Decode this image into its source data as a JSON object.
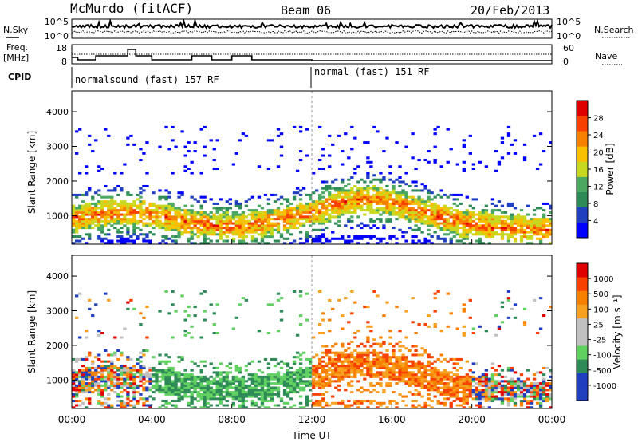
{
  "header": {
    "station": "McMurdo (fitACF)",
    "beam": "Beam 06",
    "date": "20/Feb/2013"
  },
  "top_panels": {
    "nsky_label": "N.Sky",
    "nsearch_label": "N.Search",
    "noise_ticks": [
      "10^5",
      "10^0"
    ],
    "freq_label_1": "Freq.",
    "freq_label_2": "[MHz]",
    "freq_ticks": [
      "18",
      "8"
    ],
    "nave_label": "Nave",
    "nave_ticks": [
      "60",
      "0"
    ],
    "cpid_label": "CPID",
    "cpid_entries": [
      {
        "text": "normalsound (fast) 157 RF",
        "start_hour": 0
      },
      {
        "text": "normal (fast) 151 RF",
        "start_hour": 12
      }
    ]
  },
  "colors": {
    "power_scale": [
      "#0000ff",
      "#1f3fc0",
      "#2e8b57",
      "#4aa860",
      "#c8d820",
      "#f8c000",
      "#f88000",
      "#f84000",
      "#e00000"
    ],
    "velocity_scale": [
      "#e00000",
      "#f84000",
      "#f88000",
      "#f8a020",
      "#c0c0c0",
      "#c0c0c0",
      "#60d060",
      "#2e8b57",
      "#1f3fc0",
      "#2040c0"
    ]
  },
  "chart_data": [
    {
      "type": "heatmap",
      "name": "Power",
      "xlabel": "",
      "ylabel": "Slant Range [km]",
      "xlim": [
        0,
        24
      ],
      "ylim": [
        180,
        4600
      ],
      "yticks": [
        "1000",
        "2000",
        "3000",
        "4000"
      ],
      "ytick_values": [
        1000,
        2000,
        3000,
        4000
      ],
      "colorbar_label": "Power [dB]",
      "colorbar_ticks": [
        "4",
        "8",
        "12",
        "16",
        "20",
        "24",
        "28"
      ],
      "colorbar_range": [
        0,
        30
      ]
    },
    {
      "type": "heatmap",
      "name": "Velocity",
      "xlabel": "Time UT",
      "ylabel": "Slant Range [km]",
      "xlim": [
        0,
        24
      ],
      "ylim": [
        180,
        4600
      ],
      "xticks": [
        "00:00",
        "04:00",
        "08:00",
        "12:00",
        "16:00",
        "20:00",
        "00:00"
      ],
      "xtick_values": [
        0,
        4,
        8,
        12,
        16,
        20,
        24
      ],
      "yticks": [
        "1000",
        "2000",
        "3000",
        "4000"
      ],
      "ytick_values": [
        1000,
        2000,
        3000,
        4000
      ],
      "colorbar_label": "Velocity [m s⁻¹]",
      "colorbar_ticks": [
        "1000",
        "500",
        "100",
        "25",
        "-25",
        "-100",
        "-500",
        "-1000"
      ]
    }
  ]
}
